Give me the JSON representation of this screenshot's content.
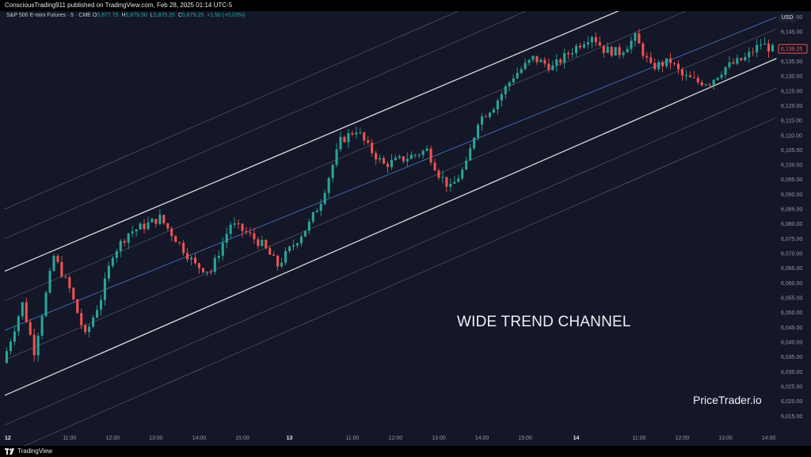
{
  "header": {
    "publisher": "ConsciousTrading911 published on TradingView.com, Feb 28, 2025 01:14 UTC-5"
  },
  "footer": {
    "logo_icon": "tradingview-logo-icon",
    "brand": "TradingView"
  },
  "legend": {
    "symbol": "S&P 500 E-mini Futures · 5 · CME",
    "open_label": "O",
    "open": "5,877.75",
    "high_label": "H",
    "high": "5,879.50",
    "low_label": "L",
    "low": "5,875.25",
    "close_label": "C",
    "close": "5,879.25",
    "change": "+1.50 (+0.03%)"
  },
  "currency": "USD",
  "overlay_title": "WIDE TREND CHANNEL",
  "watermark": "PriceTrader.io",
  "colors": {
    "background": "#141727",
    "up": "#26a69a",
    "down": "#ef5350",
    "channel_main": "#e8e8e8",
    "channel_mid": "#4a7fd4",
    "channel_outer": "#9aa0ad",
    "current_price_badge": "#ef5350"
  },
  "chart_data": {
    "type": "candlestick",
    "title": "",
    "y_axis": {
      "min": 6010,
      "max": 6152,
      "ticks": [
        "6,150.00",
        "6,145.00",
        "6,140.00",
        "6,135.00",
        "6,130.00",
        "6,125.00",
        "6,120.00",
        "6,115.00",
        "6,110.00",
        "6,105.00",
        "6,100.00",
        "6,095.00",
        "6,090.00",
        "6,085.00",
        "6,080.00",
        "6,075.00",
        "6,070.00",
        "6,065.00",
        "6,060.00",
        "6,055.00",
        "6,050.00",
        "6,045.00",
        "6,040.00",
        "6,035.00",
        "6,030.00",
        "6,025.00",
        "6,020.00",
        "6,015.00"
      ],
      "current_price": 6139.25,
      "current_price_label": "6,139.25"
    },
    "x_axis": {
      "bars_total": 196,
      "labels": [
        {
          "bar": 0,
          "text": "12",
          "bold": true
        },
        {
          "bar": 16,
          "text": "11:00"
        },
        {
          "bar": 27,
          "text": "12:00"
        },
        {
          "bar": 38,
          "text": "13:00"
        },
        {
          "bar": 49,
          "text": "14:00"
        },
        {
          "bar": 60,
          "text": "15:00"
        },
        {
          "bar": 72,
          "text": "13",
          "bold": true
        },
        {
          "bar": 88,
          "text": "11:00"
        },
        {
          "bar": 99,
          "text": "12:00"
        },
        {
          "bar": 110,
          "text": "13:00"
        },
        {
          "bar": 121,
          "text": "14:00"
        },
        {
          "bar": 132,
          "text": "15:00"
        },
        {
          "bar": 145,
          "text": "14",
          "bold": true
        },
        {
          "bar": 161,
          "text": "11:00"
        },
        {
          "bar": 172,
          "text": "12:00"
        },
        {
          "bar": 183,
          "text": "13:00"
        },
        {
          "bar": 194,
          "text": "14:00"
        }
      ]
    },
    "path_waypoints": [
      [
        0,
        6033
      ],
      [
        5,
        6053
      ],
      [
        8,
        6037
      ],
      [
        13,
        6069
      ],
      [
        17,
        6058
      ],
      [
        21,
        6042
      ],
      [
        25,
        6055
      ],
      [
        28,
        6070
      ],
      [
        32,
        6077
      ],
      [
        37,
        6080
      ],
      [
        40,
        6082
      ],
      [
        44,
        6075
      ],
      [
        49,
        6066
      ],
      [
        53,
        6064
      ],
      [
        58,
        6080
      ],
      [
        62,
        6077
      ],
      [
        66,
        6073
      ],
      [
        70,
        6066
      ],
      [
        74,
        6073
      ],
      [
        78,
        6080
      ],
      [
        81,
        6088
      ],
      [
        84,
        6100
      ],
      [
        86,
        6108
      ],
      [
        90,
        6112
      ],
      [
        93,
        6106
      ],
      [
        97,
        6100
      ],
      [
        102,
        6102
      ],
      [
        108,
        6105
      ],
      [
        111,
        6097
      ],
      [
        114,
        6092
      ],
      [
        118,
        6100
      ],
      [
        121,
        6115
      ],
      [
        125,
        6120
      ],
      [
        130,
        6130
      ],
      [
        135,
        6136
      ],
      [
        140,
        6133
      ],
      [
        146,
        6140
      ],
      [
        150,
        6144
      ],
      [
        153,
        6139
      ],
      [
        157,
        6138
      ],
      [
        161,
        6143
      ],
      [
        165,
        6133
      ],
      [
        170,
        6135
      ],
      [
        173,
        6130
      ],
      [
        177,
        6128
      ],
      [
        180,
        6128
      ],
      [
        184,
        6133
      ],
      [
        189,
        6136
      ],
      [
        193,
        6141
      ],
      [
        196,
        6139
      ]
    ],
    "channel_lines": [
      {
        "role": "upper-main",
        "x0": 0,
        "y0": 6064,
        "x1": 161,
        "y1": 6155
      },
      {
        "role": "lower-main",
        "x0": 0,
        "y0": 6022,
        "x1": 196,
        "y1": 6136
      },
      {
        "role": "midline",
        "x0": 0,
        "y0": 6044,
        "x1": 196,
        "y1": 6150
      },
      {
        "role": "outer",
        "x0": 0,
        "y0": 6085,
        "x1": 196,
        "y1": 6199
      },
      {
        "role": "outer",
        "x0": 0,
        "y0": 6075,
        "x1": 196,
        "y1": 6189
      },
      {
        "role": "outer",
        "x0": 0,
        "y0": 6054,
        "x1": 196,
        "y1": 6165
      },
      {
        "role": "outer",
        "x0": 0,
        "y0": 6034,
        "x1": 196,
        "y1": 6146
      },
      {
        "role": "outer",
        "x0": 0,
        "y0": 6012,
        "x1": 196,
        "y1": 6126
      },
      {
        "role": "outer",
        "x0": 0,
        "y0": 6002,
        "x1": 196,
        "y1": 6116
      }
    ]
  }
}
